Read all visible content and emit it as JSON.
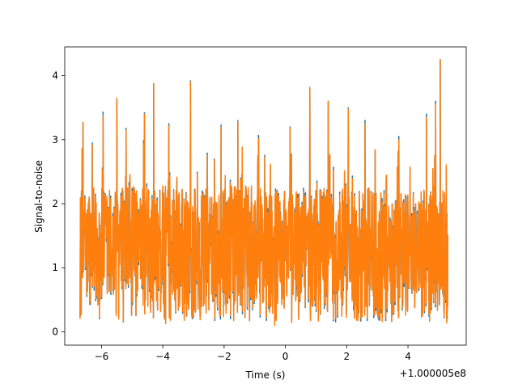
{
  "chart_data": {
    "type": "line",
    "title": "",
    "xlabel": "Time (s)",
    "ylabel": "Signal-to-noise",
    "x_offset_label": "+1.000005e8",
    "xlim": [
      -7.2,
      5.9
    ],
    "ylim": [
      -0.21,
      4.45
    ],
    "x_ticks": [
      -6,
      -4,
      -2,
      0,
      2,
      4
    ],
    "x_tick_labels": [
      "−6",
      "−4",
      "−2",
      "0",
      "2",
      "4"
    ],
    "y_ticks": [
      0,
      1,
      2,
      3,
      4
    ],
    "y_tick_labels": [
      "0",
      "1",
      "2",
      "3",
      "4"
    ],
    "grid": false,
    "legend": "none",
    "x_range_of_data": [
      -6.7,
      5.3
    ],
    "series": [
      {
        "color": "#1f77b4",
        "peaks": [
          [
            -6.6,
            3.27
          ],
          [
            -6.3,
            2.95
          ],
          [
            -5.95,
            3.43
          ],
          [
            -5.5,
            3.62
          ],
          [
            -5.2,
            3.18
          ],
          [
            -4.6,
            3.42
          ],
          [
            -4.3,
            3.87
          ],
          [
            -3.8,
            3.25
          ],
          [
            -3.1,
            3.92
          ],
          [
            -2.1,
            3.23
          ],
          [
            -1.55,
            3.3
          ],
          [
            -0.9,
            2.7
          ],
          [
            0.15,
            3.2
          ],
          [
            0.8,
            3.8
          ],
          [
            1.4,
            3.6
          ],
          [
            2.05,
            3.5
          ],
          [
            2.6,
            3.3
          ],
          [
            3.7,
            3.05
          ],
          [
            4.6,
            3.4
          ],
          [
            4.9,
            3.6
          ],
          [
            5.05,
            4.25
          ]
        ]
      },
      {
        "color": "#ff7f0e",
        "peaks": [
          [
            -6.6,
            3.27
          ],
          [
            -6.3,
            2.92
          ],
          [
            -5.95,
            3.38
          ],
          [
            -5.5,
            3.65
          ],
          [
            -5.2,
            3.15
          ],
          [
            -4.6,
            3.4
          ],
          [
            -4.3,
            3.88
          ],
          [
            -3.8,
            3.22
          ],
          [
            -3.1,
            3.9
          ],
          [
            -2.1,
            3.2
          ],
          [
            -1.55,
            3.28
          ],
          [
            -0.9,
            2.75
          ],
          [
            0.15,
            3.18
          ],
          [
            0.8,
            3.82
          ],
          [
            1.4,
            3.6
          ],
          [
            2.05,
            3.48
          ],
          [
            2.6,
            3.25
          ],
          [
            3.7,
            3.0
          ],
          [
            4.6,
            3.35
          ],
          [
            4.9,
            3.55
          ],
          [
            5.05,
            4.25
          ]
        ]
      }
    ]
  }
}
